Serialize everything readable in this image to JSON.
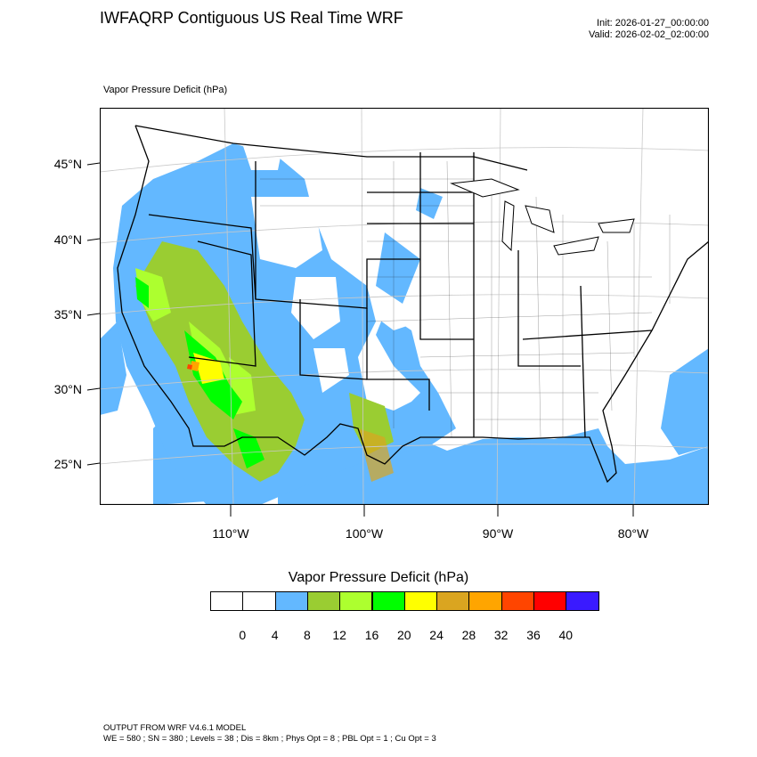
{
  "header": {
    "title": "IWFAQRP Contiguous US Real Time WRF",
    "init": "Init: 2026-01-27_00:00:00",
    "valid": "Valid: 2026-02-02_02:00:00"
  },
  "map": {
    "subtitle": "Vapor Pressure Deficit   (hPa)",
    "lat_labels": [
      "45°N",
      "40°N",
      "35°N",
      "30°N",
      "25°N"
    ],
    "lon_labels": [
      "110°W",
      "100°W",
      "90°W",
      "80°W"
    ]
  },
  "colorbar": {
    "title": "Vapor Pressure Deficit  (hPa)",
    "colors": [
      "#ffffff",
      "#ffffff",
      "#63b8ff",
      "#9acd32",
      "#adff2f",
      "#00ff00",
      "#ffff00",
      "#daa520",
      "#ffa500",
      "#ff4500",
      "#ff0000",
      "#3a1aff"
    ],
    "labels": [
      "0",
      "4",
      "8",
      "12",
      "16",
      "20",
      "24",
      "28",
      "32",
      "36",
      "40"
    ]
  },
  "footer": {
    "line1": "OUTPUT FROM WRF V4.6.1 MODEL",
    "line2": "WE = 580 ; SN = 380 ; Levels = 38 ; Dis = 8km ; Phys Opt = 8 ; PBL Opt = 1 ; Cu Opt = 3"
  }
}
